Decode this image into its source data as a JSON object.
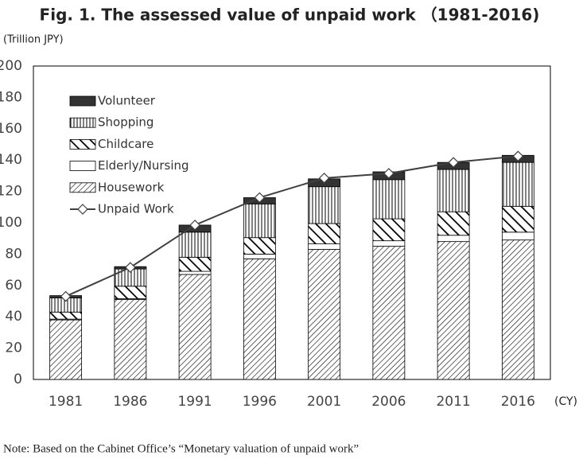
{
  "chart_data": {
    "type": "bar",
    "title": "Fig. 1. The assessed value of unpaid work （1981-2016)",
    "y_unit": "(Trillion JPY)",
    "x_unit": "(CY)",
    "note": "Note: Based on the Cabinet Office’s “Monetary valuation of unpaid work”",
    "stacked": true,
    "categories": [
      "1981",
      "1986",
      "1991",
      "1996",
      "2001",
      "2006",
      "2011",
      "2016"
    ],
    "series": [
      {
        "name": "Housework",
        "color": "#000000",
        "pattern": "diagonal",
        "values": [
          38,
          51,
          67,
          77,
          83,
          85,
          88,
          89
        ]
      },
      {
        "name": "Elderly/Nursing",
        "color": "#000000",
        "pattern": "none",
        "values": [
          0.5,
          0.5,
          2,
          3,
          3.5,
          3.5,
          4,
          5
        ]
      },
      {
        "name": "Childcare",
        "color": "#000000",
        "pattern": "backdiagonal",
        "values": [
          4.5,
          8,
          9,
          10.5,
          13,
          14,
          15,
          16.5
        ]
      },
      {
        "name": "Shopping",
        "color": "#000000",
        "pattern": "vertical",
        "values": [
          9,
          11,
          16,
          21.5,
          23.5,
          25,
          27,
          28
        ]
      },
      {
        "name": "Volunteer",
        "color": "#333333",
        "pattern": "solid",
        "values": [
          1.5,
          1.5,
          4.5,
          4,
          5,
          5,
          4.5,
          4.5
        ]
      }
    ],
    "line": {
      "name": "Unpaid Work",
      "color": "#404040",
      "marker": "diamond",
      "values": [
        53,
        71.5,
        98.5,
        116,
        128.5,
        131.5,
        138.5,
        142.5
      ]
    },
    "legend": "upper-left",
    "ylim": [
      0,
      200
    ],
    "yticks": [
      0,
      20,
      40,
      60,
      80,
      100,
      120,
      140,
      160,
      180,
      200
    ]
  }
}
